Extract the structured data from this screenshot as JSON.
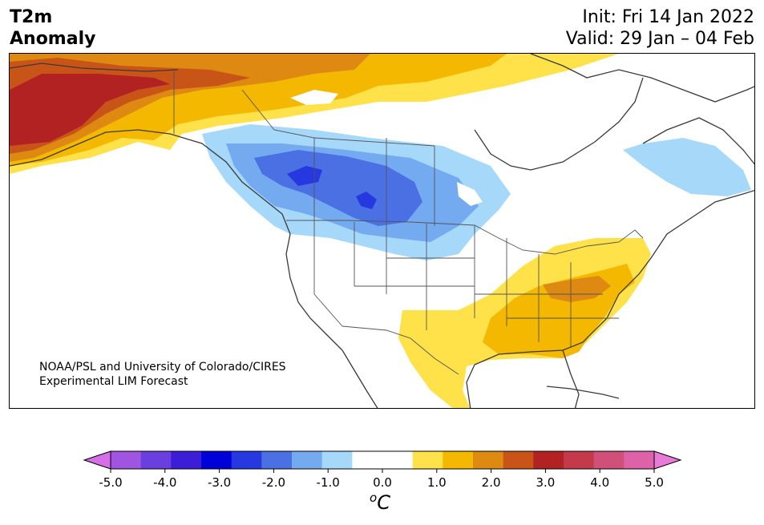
{
  "header": {
    "title_line1": "T2m",
    "title_line2": "Anomaly",
    "init": "Init: Fri 14 Jan 2022",
    "valid": "Valid: 29 Jan – 04 Feb"
  },
  "credit": {
    "line1": "NOAA/PSL and University of Colorado/CIRES",
    "line2": "Experimental LIM Forecast"
  },
  "colorbar": {
    "unit_sup": "o",
    "unit_main": "C",
    "min_arrow_color": "#d66ee8",
    "max_arrow_color": "#e87bd8",
    "colors": [
      "#a055e0",
      "#6a3fe0",
      "#3b1ed6",
      "#0000d8",
      "#2638df",
      "#4a70e4",
      "#74aaf0",
      "#a6d8fa",
      "#ffffff",
      "#ffffff",
      "#ffe14a",
      "#f4b800",
      "#de8a12",
      "#c85418",
      "#b22222",
      "#c43a4a",
      "#d0507a",
      "#de62a8"
    ],
    "ticks": [
      "-5.0",
      "-4.0",
      "-3.0",
      "-2.0",
      "-1.0",
      "0.0",
      "1.0",
      "2.0",
      "3.0",
      "4.0",
      "5.0"
    ]
  },
  "anomaly_palette": {
    "warm_1": "#ffe14a",
    "warm_2": "#f4b800",
    "warm_3": "#de8a12",
    "warm_4": "#c85418",
    "warm_5": "#b22222",
    "cold_1": "#a6d8fa",
    "cold_2": "#74aaf0",
    "cold_3": "#4a70e4",
    "cold_4": "#2638df"
  }
}
